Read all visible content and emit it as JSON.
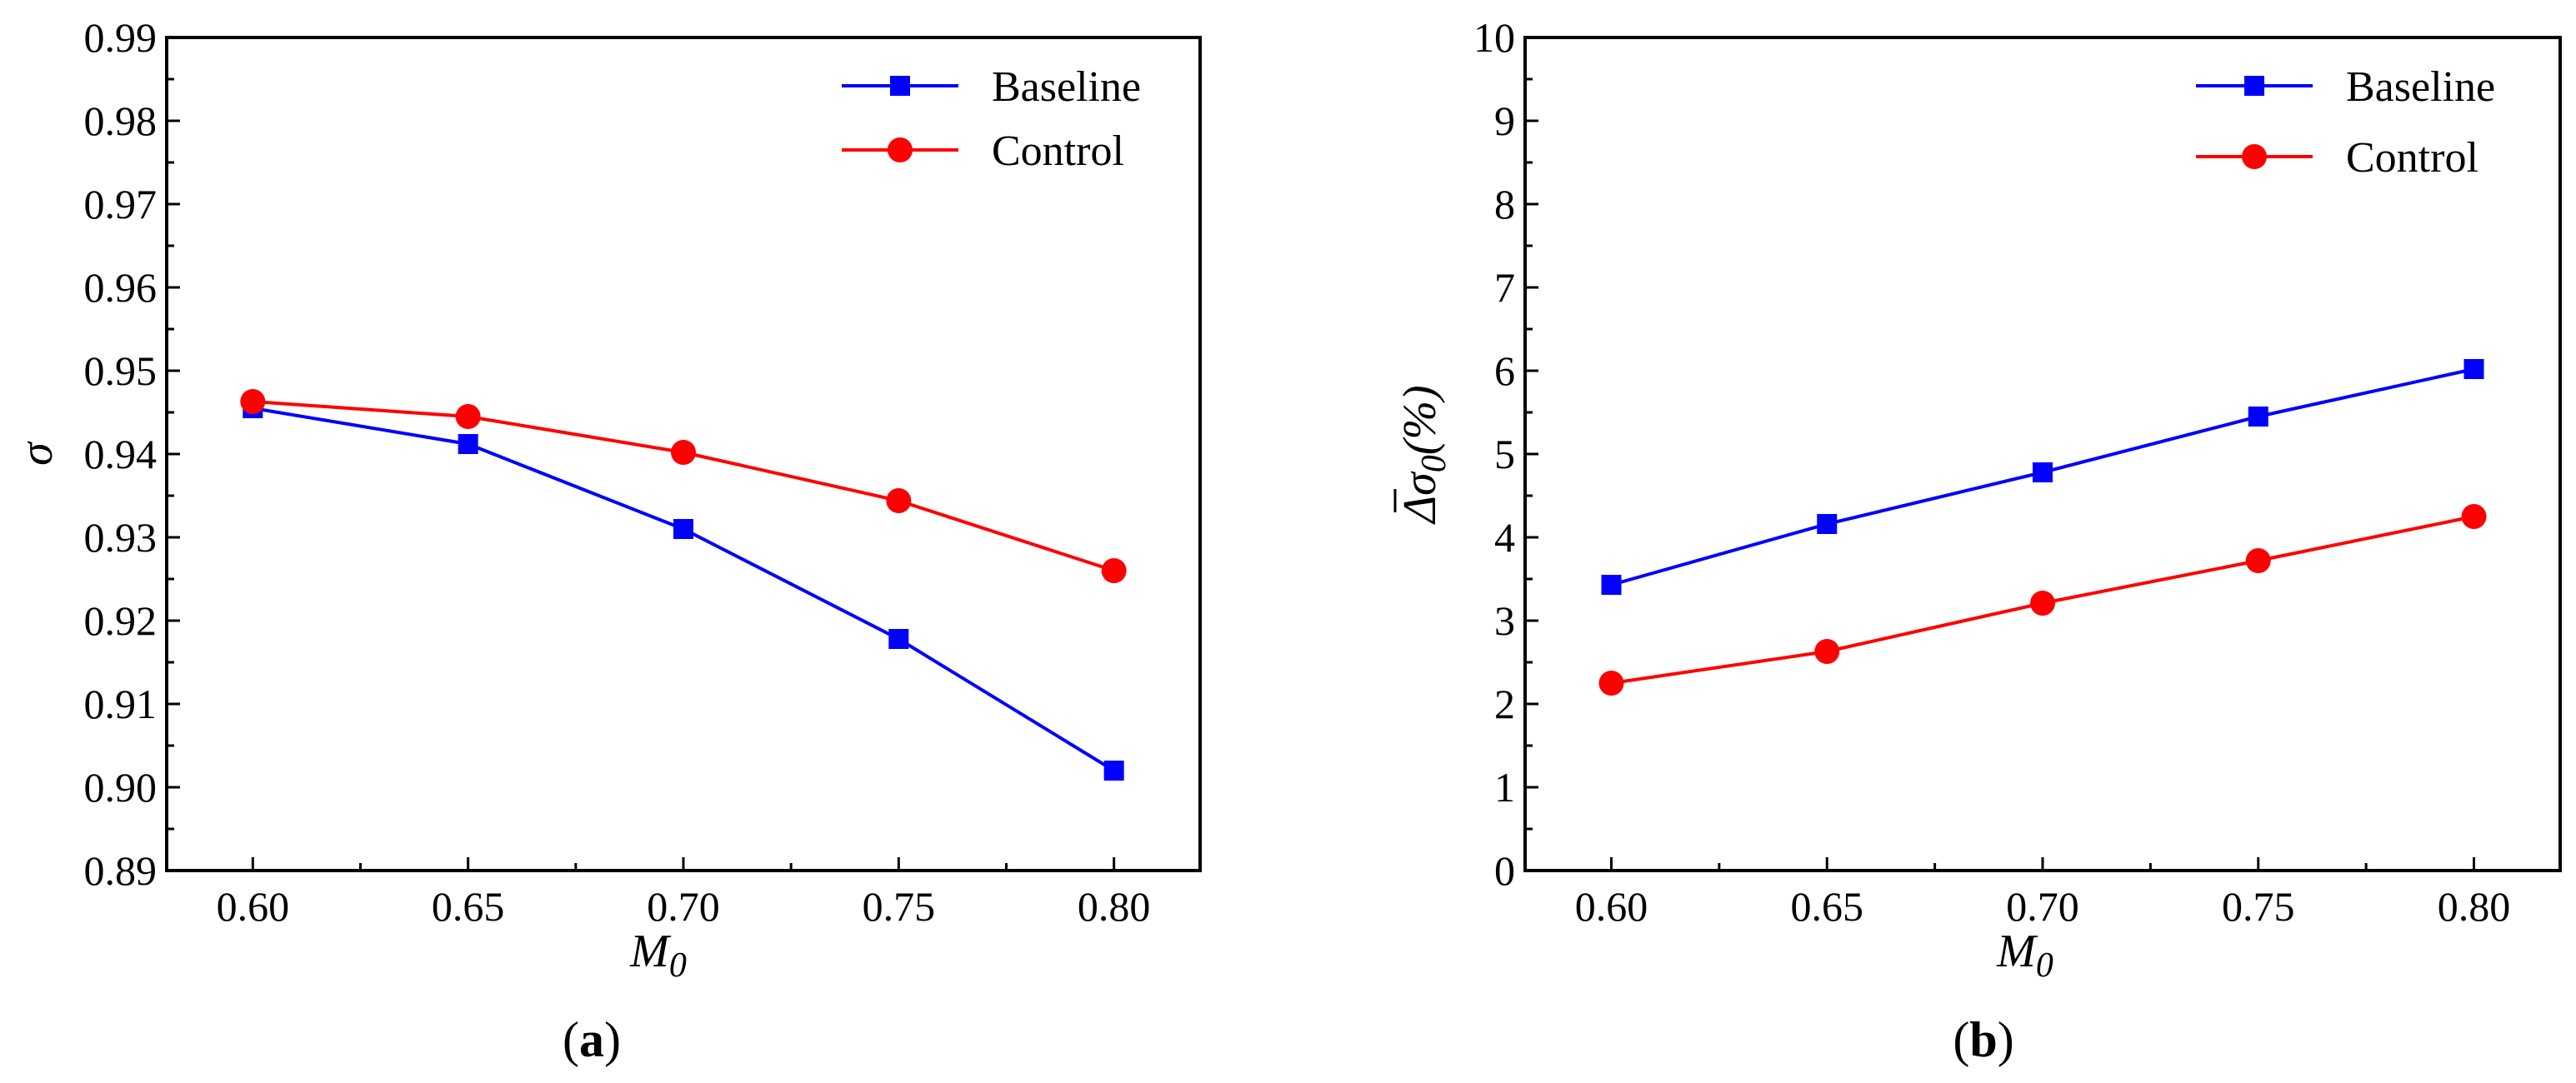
{
  "figure": {
    "panels": [
      {
        "caption_open": "(",
        "caption_letter": "a",
        "caption_close": ")"
      },
      {
        "caption_open": "(",
        "caption_letter": "b",
        "caption_close": ")"
      }
    ]
  },
  "chart_data": [
    {
      "type": "line",
      "panel": "a",
      "title": "",
      "xlabel": "M",
      "xlabel_sub": "0",
      "ylabel": "σ",
      "ylabel_sub": "",
      "ylabel_suffix": "",
      "x": [
        0.6,
        0.65,
        0.7,
        0.75,
        0.8
      ],
      "xticks": [
        "0.60",
        "0.65",
        "0.70",
        "0.75",
        "0.80"
      ],
      "xlim": [
        0.58,
        0.82
      ],
      "yticks": [
        "0.89",
        "0.90",
        "0.91",
        "0.92",
        "0.93",
        "0.94",
        "0.95",
        "0.96",
        "0.97",
        "0.98",
        "0.99"
      ],
      "ylim": [
        0.89,
        0.99
      ],
      "grid": false,
      "legend_position": "top-right",
      "series": [
        {
          "name": "Baseline",
          "color": "#0000ff",
          "marker": "square",
          "values": [
            0.9455,
            0.9412,
            0.931,
            0.9178,
            0.902
          ]
        },
        {
          "name": "Control",
          "color": "#ff0000",
          "marker": "circle",
          "values": [
            0.9463,
            0.9445,
            0.9402,
            0.9344,
            0.926
          ]
        }
      ]
    },
    {
      "type": "line",
      "panel": "b",
      "title": "",
      "xlabel": "M",
      "xlabel_sub": "0",
      "ylabel": "Δσ",
      "ylabel_sub": "0",
      "ylabel_suffix": "(%)",
      "x": [
        0.6,
        0.65,
        0.7,
        0.75,
        0.8
      ],
      "xticks": [
        "0.60",
        "0.65",
        "0.70",
        "0.75",
        "0.80"
      ],
      "xlim": [
        0.58,
        0.82
      ],
      "yticks": [
        "0",
        "1",
        "2",
        "3",
        "4",
        "5",
        "6",
        "7",
        "8",
        "9",
        "10"
      ],
      "ylim": [
        0,
        10
      ],
      "grid": false,
      "legend_position": "top-right",
      "series": [
        {
          "name": "Baseline",
          "color": "#0000ff",
          "marker": "square",
          "values": [
            3.43,
            4.16,
            4.78,
            5.45,
            6.02
          ]
        },
        {
          "name": "Control",
          "color": "#ff0000",
          "marker": "circle",
          "values": [
            2.25,
            2.63,
            3.21,
            3.72,
            4.25
          ]
        }
      ]
    }
  ]
}
